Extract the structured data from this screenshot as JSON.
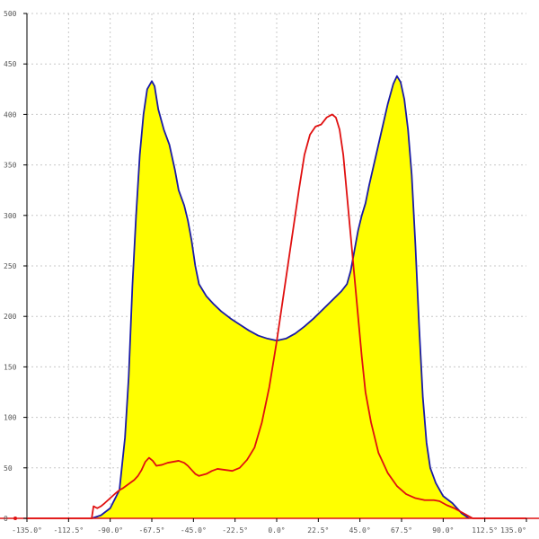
{
  "chart_data": {
    "type": "area",
    "title": "",
    "xlabel": "",
    "ylabel": "",
    "xlim": [
      -135,
      135
    ],
    "ylim": [
      0,
      500
    ],
    "grid": true,
    "x_ticks": [
      -135,
      -112.5,
      -90,
      -67.5,
      -45,
      -22.5,
      0,
      22.5,
      45,
      67.5,
      90,
      112.5,
      135
    ],
    "x_tick_labels": [
      "-135.0°",
      "-112.5°",
      "-90.0°",
      "-67.5°",
      "-45.0°",
      "-22.5°",
      "0.0°",
      "22.5°",
      "45.0°",
      "67.5°",
      "90.0°",
      "112.5°",
      "135.0°"
    ],
    "y_ticks": [
      0,
      50,
      100,
      150,
      200,
      250,
      300,
      350,
      400,
      450,
      500
    ],
    "y_tick_labels": [
      "0",
      "50",
      "100",
      "150",
      "200",
      "250",
      "300",
      "350",
      "400",
      "450",
      "500"
    ],
    "series": [
      {
        "color": "#1a1aa6",
        "fill": "#ffff00",
        "points": [
          [
            -100,
            0
          ],
          [
            -95,
            3
          ],
          [
            -90,
            10
          ],
          [
            -85,
            28
          ],
          [
            -82,
            80
          ],
          [
            -80,
            140
          ],
          [
            -78,
            230
          ],
          [
            -76,
            300
          ],
          [
            -74,
            360
          ],
          [
            -72,
            400
          ],
          [
            -70,
            425
          ],
          [
            -67.5,
            433
          ],
          [
            -66,
            428
          ],
          [
            -64,
            405
          ],
          [
            -61,
            385
          ],
          [
            -58,
            370
          ],
          [
            -55,
            345
          ],
          [
            -53,
            325
          ],
          [
            -50,
            310
          ],
          [
            -48,
            295
          ],
          [
            -46,
            275
          ],
          [
            -44,
            250
          ],
          [
            -42,
            232
          ],
          [
            -38,
            220
          ],
          [
            -34,
            212
          ],
          [
            -30,
            205
          ],
          [
            -25,
            198
          ],
          [
            -20,
            192
          ],
          [
            -15,
            186
          ],
          [
            -10,
            181
          ],
          [
            -5,
            178
          ],
          [
            0,
            176
          ],
          [
            5,
            178
          ],
          [
            10,
            183
          ],
          [
            15,
            190
          ],
          [
            20,
            198
          ],
          [
            25,
            207
          ],
          [
            30,
            216
          ],
          [
            35,
            225
          ],
          [
            38,
            232
          ],
          [
            40,
            245
          ],
          [
            42,
            265
          ],
          [
            44,
            285
          ],
          [
            46,
            300
          ],
          [
            48,
            312
          ],
          [
            50,
            330
          ],
          [
            55,
            370
          ],
          [
            60,
            410
          ],
          [
            63,
            430
          ],
          [
            65,
            438
          ],
          [
            67,
            432
          ],
          [
            69,
            415
          ],
          [
            71,
            385
          ],
          [
            73,
            340
          ],
          [
            75,
            270
          ],
          [
            77,
            190
          ],
          [
            79,
            120
          ],
          [
            81,
            75
          ],
          [
            83,
            50
          ],
          [
            86,
            35
          ],
          [
            90,
            22
          ],
          [
            95,
            15
          ],
          [
            100,
            5
          ],
          [
            104,
            0
          ]
        ]
      },
      {
        "color": "#e01010",
        "points": [
          [
            -135,
            0
          ],
          [
            -100,
            0
          ],
          [
            -99,
            12
          ],
          [
            -97,
            10
          ],
          [
            -95,
            12
          ],
          [
            -93,
            15
          ],
          [
            -90,
            20
          ],
          [
            -87,
            25
          ],
          [
            -85,
            28
          ],
          [
            -83,
            30
          ],
          [
            -80,
            34
          ],
          [
            -77,
            38
          ],
          [
            -75,
            42
          ],
          [
            -73,
            48
          ],
          [
            -71,
            56
          ],
          [
            -69,
            60
          ],
          [
            -67,
            57
          ],
          [
            -65,
            52
          ],
          [
            -62,
            53
          ],
          [
            -59,
            55
          ],
          [
            -56,
            56
          ],
          [
            -53,
            57
          ],
          [
            -50,
            55
          ],
          [
            -48,
            52
          ],
          [
            -46,
            48
          ],
          [
            -44,
            44
          ],
          [
            -42,
            42
          ],
          [
            -38,
            44
          ],
          [
            -35,
            47
          ],
          [
            -32,
            49
          ],
          [
            -28,
            48
          ],
          [
            -24,
            47
          ],
          [
            -20,
            50
          ],
          [
            -16,
            58
          ],
          [
            -12,
            70
          ],
          [
            -8,
            95
          ],
          [
            -4,
            130
          ],
          [
            0,
            175
          ],
          [
            4,
            225
          ],
          [
            8,
            275
          ],
          [
            12,
            325
          ],
          [
            15,
            360
          ],
          [
            18,
            380
          ],
          [
            21,
            388
          ],
          [
            24,
            390
          ],
          [
            27,
            397
          ],
          [
            30,
            400
          ],
          [
            32,
            397
          ],
          [
            34,
            385
          ],
          [
            36,
            360
          ],
          [
            38,
            320
          ],
          [
            40,
            280
          ],
          [
            42,
            240
          ],
          [
            44,
            200
          ],
          [
            46,
            160
          ],
          [
            48,
            125
          ],
          [
            51,
            95
          ],
          [
            55,
            65
          ],
          [
            60,
            45
          ],
          [
            65,
            32
          ],
          [
            70,
            24
          ],
          [
            75,
            20
          ],
          [
            80,
            18
          ],
          [
            85,
            18
          ],
          [
            88,
            17
          ],
          [
            92,
            13
          ],
          [
            96,
            10
          ],
          [
            100,
            6
          ],
          [
            103,
            3
          ],
          [
            106,
            0
          ],
          [
            135,
            0
          ]
        ]
      }
    ]
  }
}
